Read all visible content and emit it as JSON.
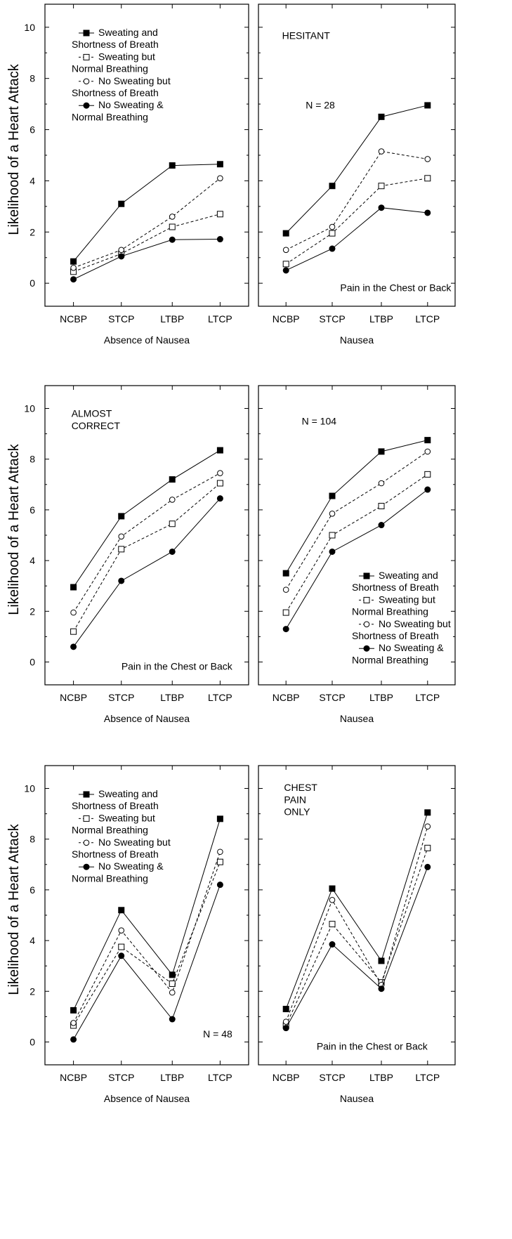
{
  "ylabel": "Likelihood of a Heart Attack",
  "series_styles": [
    {
      "name": "Sweating and Shortness of Breath",
      "marker": "filled-square",
      "dash": "solid"
    },
    {
      "name": "Sweating but Normal Breathing",
      "marker": "open-square",
      "dash": "dashed"
    },
    {
      "name": "No Sweating but Shortness of Breath",
      "marker": "open-circle",
      "dash": "dashed"
    },
    {
      "name": "No Sweating & Normal Breathing",
      "marker": "filled-circle",
      "dash": "solid"
    }
  ],
  "legend_lines": [
    [
      "Sweating and",
      "Shortness of Breath"
    ],
    [
      "Sweating but",
      "Normal Breathing"
    ],
    [
      "No Sweating but",
      "Shortness of Breath"
    ],
    [
      "No Sweating &",
      "Normal Breathing"
    ]
  ],
  "chart_data": [
    {
      "type": "line",
      "row": 0,
      "col": 0,
      "categories": [
        "NCBP",
        "STCP",
        "LTBP",
        "LTCP"
      ],
      "xlabel": "Absence of Nausea",
      "ylim": [
        -0.9,
        10.9
      ],
      "yticks": [
        0,
        2,
        4,
        6,
        8,
        10
      ],
      "annotations": [],
      "legend": "top-left",
      "series": [
        {
          "name": "Sweating and Shortness of Breath",
          "values": [
            0.85,
            3.1,
            4.6,
            4.65
          ]
        },
        {
          "name": "Sweating but Normal Breathing",
          "values": [
            0.45,
            1.15,
            2.2,
            2.7
          ]
        },
        {
          "name": "No Sweating but Shortness of Breath",
          "values": [
            0.6,
            1.3,
            2.6,
            4.1
          ]
        },
        {
          "name": "No Sweating & Normal Breathing",
          "values": [
            0.15,
            1.05,
            1.7,
            1.72
          ]
        }
      ]
    },
    {
      "type": "line",
      "row": 0,
      "col": 1,
      "categories": [
        "NCBP",
        "STCP",
        "LTBP",
        "LTCP"
      ],
      "xlabel": "Nausea",
      "ylim": [
        -0.9,
        10.9
      ],
      "yticks": [
        0,
        2,
        4,
        6,
        8,
        10
      ],
      "annotations": [
        "HESITANT",
        "N = 28",
        "Pain in the Chest or Back"
      ],
      "legend": "none",
      "series": [
        {
          "name": "Sweating and Shortness of Breath",
          "values": [
            1.95,
            3.8,
            6.5,
            6.95
          ]
        },
        {
          "name": "Sweating but Normal Breathing",
          "values": [
            0.75,
            1.95,
            3.8,
            4.1
          ]
        },
        {
          "name": "No Sweating but Shortness of Breath",
          "values": [
            1.3,
            2.2,
            5.15,
            4.85
          ]
        },
        {
          "name": "No Sweating & Normal Breathing",
          "values": [
            0.5,
            1.35,
            2.95,
            2.75
          ]
        }
      ]
    },
    {
      "type": "line",
      "row": 1,
      "col": 0,
      "categories": [
        "NCBP",
        "STCP",
        "LTBP",
        "LTCP"
      ],
      "xlabel": "Absence of Nausea",
      "ylim": [
        -0.9,
        10.9
      ],
      "yticks": [
        0,
        2,
        4,
        6,
        8,
        10
      ],
      "annotations": [
        "ALMOST",
        "CORRECT",
        "Pain in the Chest or Back"
      ],
      "legend": "none",
      "series": [
        {
          "name": "Sweating and Shortness of Breath",
          "values": [
            2.95,
            5.75,
            7.2,
            8.35
          ]
        },
        {
          "name": "Sweating but Normal Breathing",
          "values": [
            1.2,
            4.45,
            5.45,
            7.05
          ]
        },
        {
          "name": "No Sweating but Shortness of Breath",
          "values": [
            1.95,
            4.95,
            6.4,
            7.45
          ]
        },
        {
          "name": "No Sweating & Normal Breathing",
          "values": [
            0.6,
            3.2,
            4.35,
            6.45
          ]
        }
      ]
    },
    {
      "type": "line",
      "row": 1,
      "col": 1,
      "categories": [
        "NCBP",
        "STCP",
        "LTBP",
        "LTCP"
      ],
      "xlabel": "Nausea",
      "ylim": [
        -0.9,
        10.9
      ],
      "yticks": [
        0,
        2,
        4,
        6,
        8,
        10
      ],
      "annotations": [
        "N = 104"
      ],
      "legend": "bottom-right",
      "series": [
        {
          "name": "Sweating and Shortness of Breath",
          "values": [
            3.5,
            6.55,
            8.3,
            8.75
          ]
        },
        {
          "name": "Sweating but Normal Breathing",
          "values": [
            1.95,
            5.0,
            6.15,
            7.4
          ]
        },
        {
          "name": "No Sweating but Shortness of Breath",
          "values": [
            2.85,
            5.85,
            7.05,
            8.3
          ]
        },
        {
          "name": "No Sweating & Normal Breathing",
          "values": [
            1.3,
            4.35,
            5.4,
            6.8
          ]
        }
      ]
    },
    {
      "type": "line",
      "row": 2,
      "col": 0,
      "categories": [
        "NCBP",
        "STCP",
        "LTBP",
        "LTCP"
      ],
      "xlabel": "Absence of Nausea",
      "ylim": [
        -0.9,
        10.9
      ],
      "yticks": [
        0,
        2,
        4,
        6,
        8,
        10
      ],
      "annotations": [
        "N = 48"
      ],
      "legend": "top-left",
      "series": [
        {
          "name": "Sweating and Shortness of Breath",
          "values": [
            1.25,
            5.2,
            2.65,
            8.8
          ]
        },
        {
          "name": "Sweating but Normal Breathing",
          "values": [
            0.65,
            3.75,
            2.3,
            7.1
          ]
        },
        {
          "name": "No Sweating but Shortness of Breath",
          "values": [
            0.75,
            4.4,
            1.95,
            7.5
          ]
        },
        {
          "name": "No Sweating & Normal Breathing",
          "values": [
            0.1,
            3.4,
            0.9,
            6.2
          ]
        }
      ]
    },
    {
      "type": "line",
      "row": 2,
      "col": 1,
      "categories": [
        "NCBP",
        "STCP",
        "LTBP",
        "LTCP"
      ],
      "xlabel": "Nausea",
      "ylim": [
        -0.9,
        10.9
      ],
      "yticks": [
        0,
        2,
        4,
        6,
        8,
        10
      ],
      "annotations": [
        "CHEST",
        "PAIN",
        "ONLY",
        "Pain in the Chest or Back"
      ],
      "legend": "none",
      "series": [
        {
          "name": "Sweating and Shortness of Breath",
          "values": [
            1.3,
            6.05,
            3.2,
            9.05
          ]
        },
        {
          "name": "Sweating but Normal Breathing",
          "values": [
            0.65,
            4.65,
            2.35,
            7.65
          ]
        },
        {
          "name": "No Sweating but Shortness of Breath",
          "values": [
            0.8,
            5.6,
            2.25,
            8.5
          ]
        },
        {
          "name": "No Sweating & Normal Breathing",
          "values": [
            0.55,
            3.85,
            2.1,
            6.9
          ]
        }
      ]
    }
  ]
}
